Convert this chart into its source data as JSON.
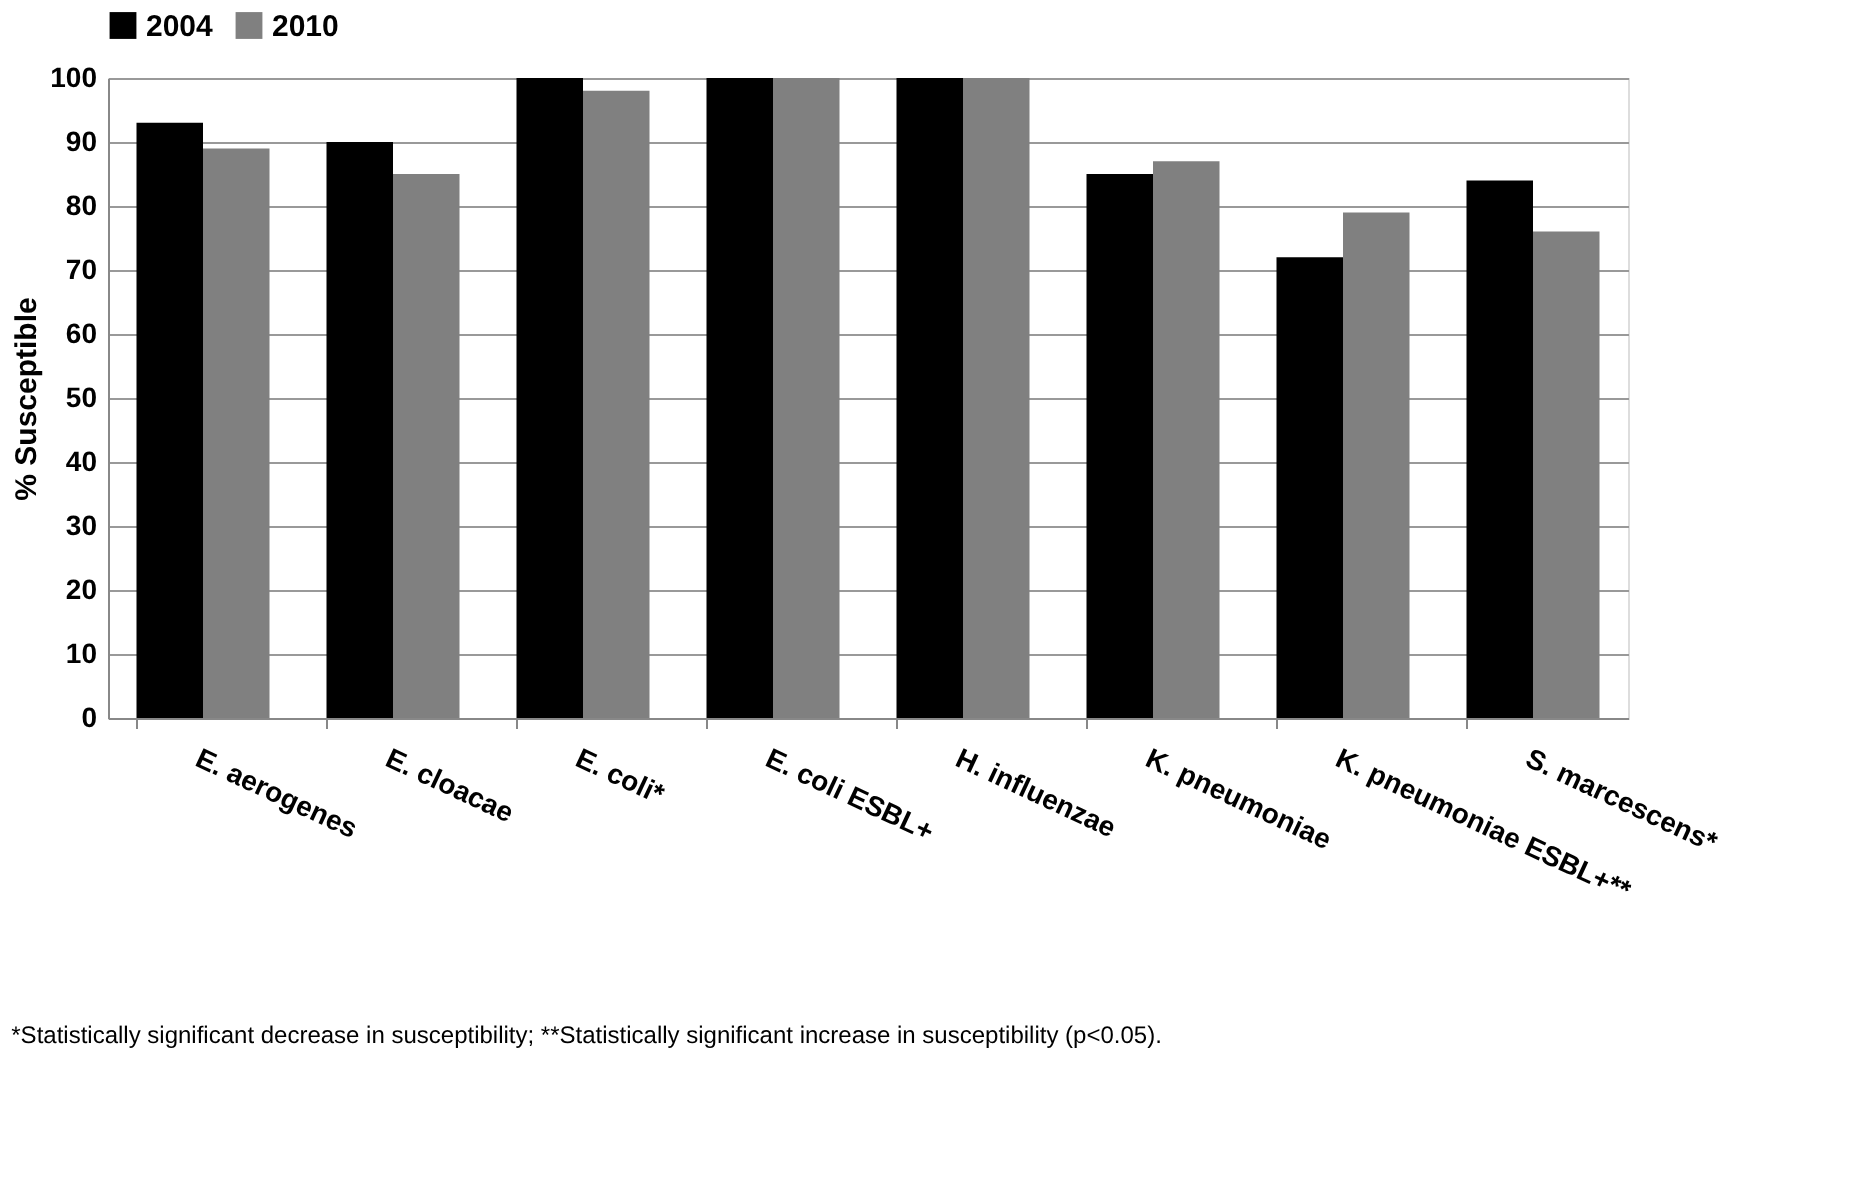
{
  "chart_data": {
    "type": "bar",
    "ylabel": "% Susceptible",
    "categories": [
      "E. aerogenes",
      "E. cloacae",
      "E. coli*",
      "E. coli ESBL+",
      "H. influenzae",
      "K. pneumoniae",
      "K. pneumoniae ESBL+**",
      "S. marcescens*"
    ],
    "series": [
      {
        "name": "2004",
        "color": "#000000",
        "values": [
          93,
          90,
          100,
          100,
          100,
          85,
          72,
          84
        ]
      },
      {
        "name": "2010",
        "color": "#808080",
        "values": [
          89,
          85,
          98,
          100,
          100,
          87,
          79,
          76
        ]
      }
    ],
    "ylim": [
      0,
      100
    ],
    "yticks": [
      0,
      10,
      20,
      30,
      40,
      50,
      60,
      70,
      80,
      90,
      100
    ],
    "grid": "y",
    "legend": "top",
    "annotations": [
      "*Statistically significant decrease in susceptibility; **Statistically significant increase in susceptibility (p<0.05)."
    ]
  }
}
